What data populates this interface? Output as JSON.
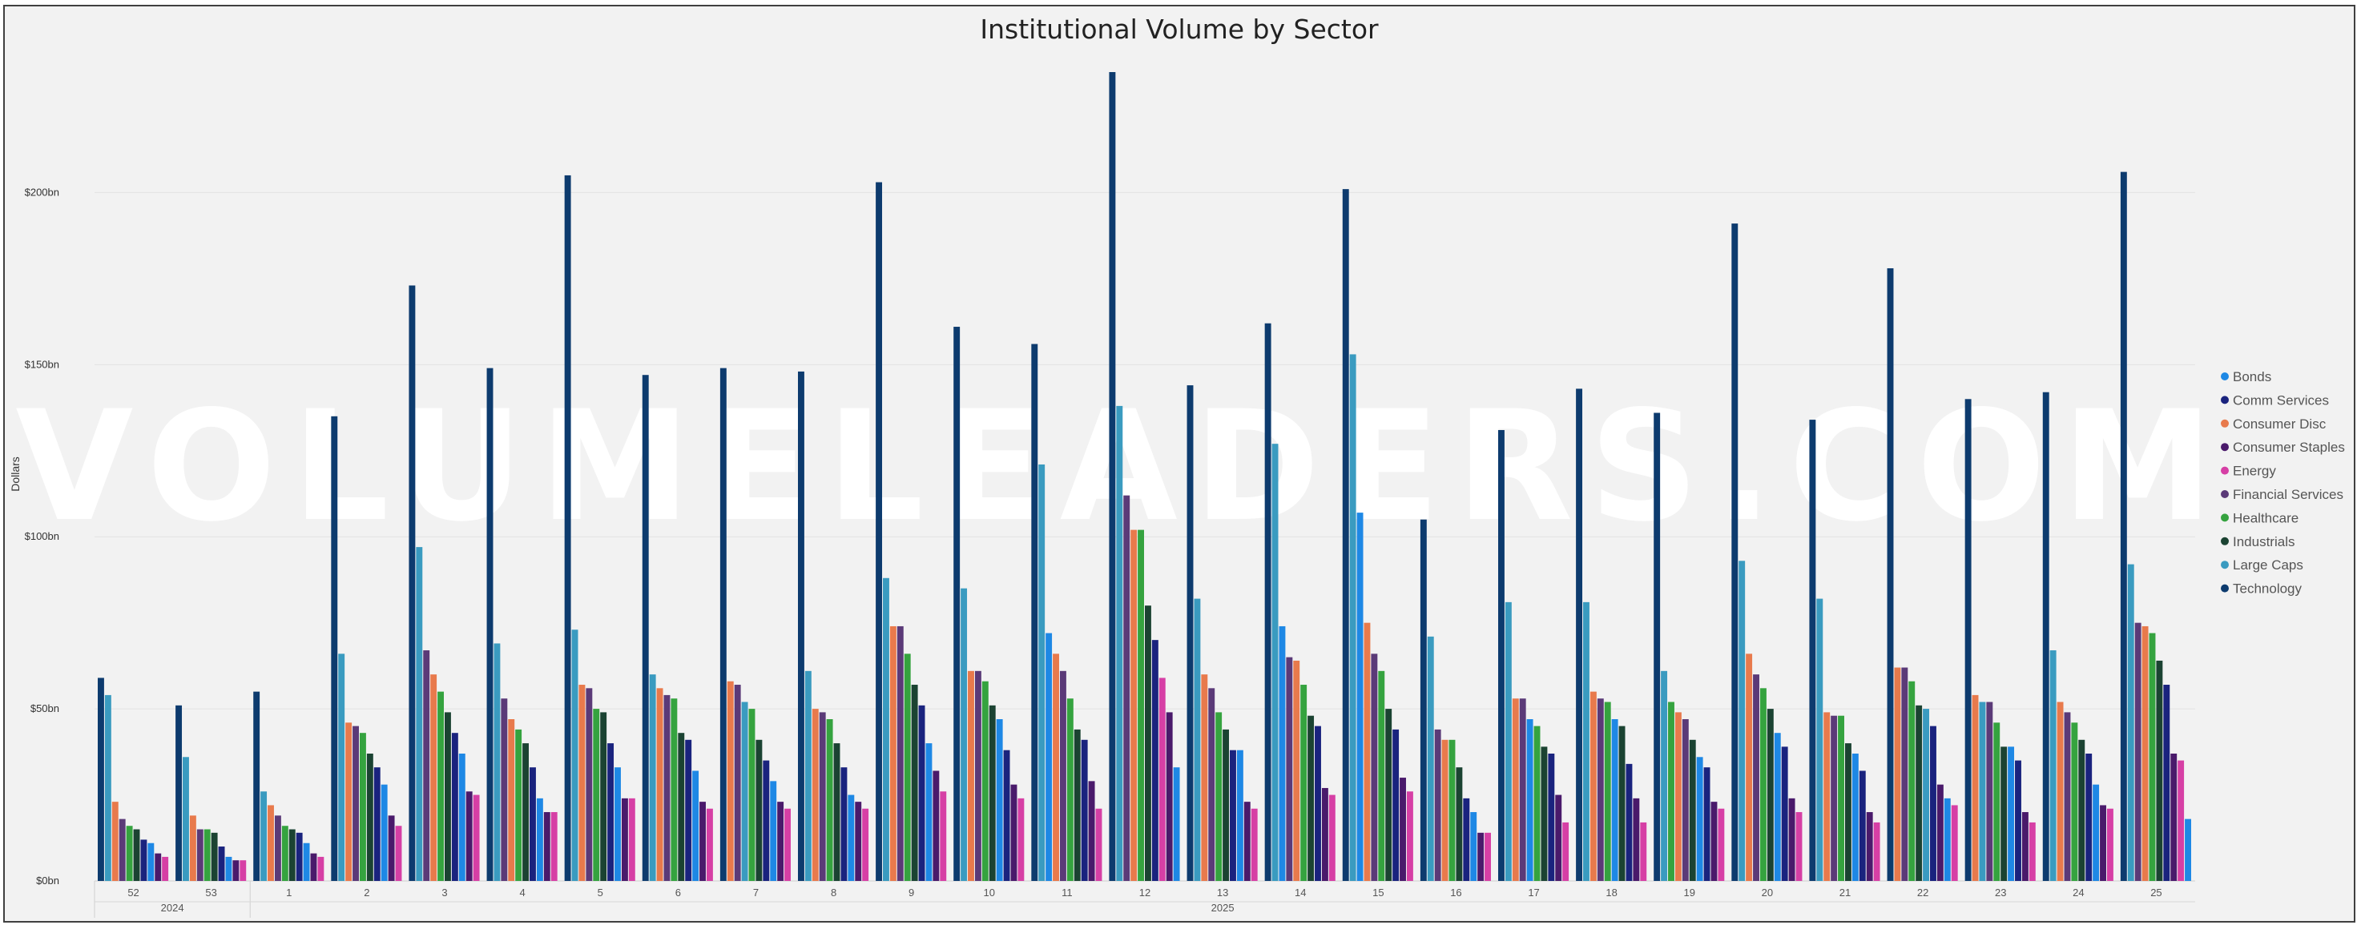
{
  "chart_data": {
    "type": "bar",
    "title": "Institutional Volume by Sector",
    "ylabel": "Dollars",
    "xlabel": "",
    "ylim": [
      0,
      235
    ],
    "yticks": [
      {
        "value": 0,
        "label": "$0bn"
      },
      {
        "value": 50,
        "label": "$50bn"
      },
      {
        "value": 100,
        "label": "$100bn"
      },
      {
        "value": 150,
        "label": "$150bn"
      },
      {
        "value": 200,
        "label": "$200bn"
      }
    ],
    "grid": true,
    "legend_position": "right",
    "watermark": "VOLUMELEADERS.COM",
    "categories": [
      "52",
      "53",
      "1",
      "2",
      "3",
      "4",
      "5",
      "6",
      "7",
      "8",
      "9",
      "10",
      "11",
      "12",
      "13",
      "14",
      "15",
      "16",
      "17",
      "18",
      "19",
      "20",
      "21",
      "22",
      "23",
      "24",
      "25"
    ],
    "year_groups": [
      {
        "label": "2024",
        "count": 2
      },
      {
        "label": "2025",
        "count": 25
      }
    ],
    "series": [
      {
        "name": "Large Caps",
        "color": "#3a9bc0",
        "values": [
          54,
          36,
          26,
          66,
          97,
          69,
          73,
          60,
          52,
          61,
          88,
          85,
          121,
          138,
          82,
          127,
          153,
          71,
          81,
          81,
          61,
          93,
          82,
          50,
          52,
          67,
          92
        ]
      },
      {
        "name": "Consumer Disc",
        "color": "#e87a4c",
        "values": [
          23,
          19,
          22,
          46,
          60,
          47,
          57,
          56,
          58,
          50,
          74,
          61,
          66,
          102,
          60,
          64,
          75,
          41,
          53,
          55,
          49,
          66,
          49,
          62,
          54,
          52,
          74
        ]
      },
      {
        "name": "Financial Services",
        "color": "#5b3a78",
        "values": [
          18,
          15,
          19,
          45,
          67,
          53,
          56,
          54,
          57,
          49,
          74,
          61,
          61,
          112,
          56,
          65,
          66,
          44,
          53,
          53,
          47,
          60,
          48,
          62,
          52,
          49,
          75
        ]
      },
      {
        "name": "Healthcare",
        "color": "#35a33f",
        "values": [
          16,
          15,
          16,
          43,
          55,
          44,
          50,
          53,
          50,
          47,
          66,
          58,
          53,
          102,
          49,
          57,
          61,
          41,
          45,
          52,
          52,
          56,
          48,
          58,
          46,
          46,
          72
        ]
      },
      {
        "name": "Industrials",
        "color": "#1b4332",
        "values": [
          15,
          14,
          15,
          37,
          49,
          40,
          49,
          43,
          41,
          40,
          57,
          51,
          44,
          80,
          44,
          48,
          50,
          33,
          39,
          45,
          41,
          50,
          40,
          51,
          39,
          41,
          64
        ]
      },
      {
        "name": "Comm Services",
        "color": "#1a237e",
        "values": [
          12,
          10,
          14,
          33,
          43,
          33,
          40,
          41,
          35,
          33,
          51,
          38,
          41,
          70,
          38,
          45,
          44,
          24,
          37,
          34,
          33,
          39,
          32,
          45,
          35,
          37,
          57
        ]
      },
      {
        "name": "Bonds",
        "color": "#1e88e5",
        "values": [
          11,
          7,
          11,
          28,
          37,
          24,
          33,
          32,
          29,
          25,
          40,
          47,
          72,
          33,
          38,
          74,
          107,
          20,
          47,
          47,
          36,
          43,
          37,
          24,
          39,
          28,
          18
        ]
      },
      {
        "name": "Consumer Staples",
        "color": "#4a1a6b",
        "values": [
          8,
          6,
          8,
          19,
          26,
          20,
          24,
          23,
          23,
          23,
          32,
          28,
          29,
          49,
          23,
          27,
          30,
          14,
          25,
          24,
          23,
          24,
          20,
          28,
          20,
          22,
          37
        ]
      },
      {
        "name": "Energy",
        "color": "#d63fa5",
        "values": [
          7,
          6,
          7,
          16,
          25,
          20,
          24,
          21,
          21,
          21,
          26,
          24,
          21,
          59,
          21,
          25,
          26,
          14,
          17,
          17,
          21,
          20,
          17,
          22,
          17,
          21,
          35
        ]
      },
      {
        "name": "Technology",
        "color": "#0d3b6e",
        "values": [
          59,
          51,
          55,
          135,
          173,
          149,
          205,
          147,
          149,
          148,
          203,
          161,
          156,
          235,
          144,
          162,
          201,
          105,
          131,
          143,
          136,
          191,
          134,
          178,
          140,
          142,
          206
        ]
      }
    ],
    "legend": [
      {
        "name": "Bonds",
        "color": "#1e88e5"
      },
      {
        "name": "Comm Services",
        "color": "#1a237e"
      },
      {
        "name": "Consumer Disc",
        "color": "#e87a4c"
      },
      {
        "name": "Consumer Staples",
        "color": "#4a1a6b"
      },
      {
        "name": "Energy",
        "color": "#d63fa5"
      },
      {
        "name": "Financial Services",
        "color": "#5b3a78"
      },
      {
        "name": "Healthcare",
        "color": "#35a33f"
      },
      {
        "name": "Industrials",
        "color": "#1b4332"
      },
      {
        "name": "Large Caps",
        "color": "#3a9bc0"
      },
      {
        "name": "Technology",
        "color": "#0d3b6e"
      }
    ]
  }
}
